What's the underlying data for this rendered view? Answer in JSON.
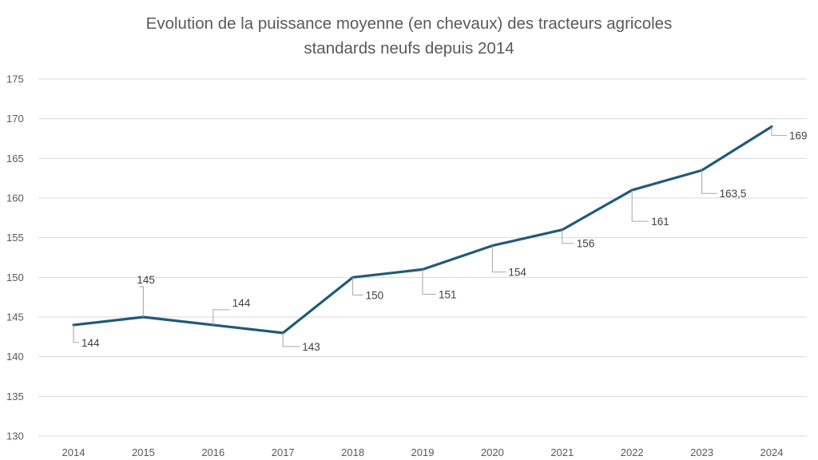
{
  "chart_data": {
    "type": "line",
    "title_lines": [
      "Evolution de la puissance moyenne (en chevaux) des tracteurs agricoles",
      "standards neufs depuis 2014"
    ],
    "x": [
      "2014",
      "2015",
      "2016",
      "2017",
      "2018",
      "2019",
      "2020",
      "2021",
      "2022",
      "2023",
      "2024"
    ],
    "series": [
      {
        "values": [
          144,
          145,
          144,
          143,
          150,
          151,
          154,
          156,
          161,
          163.5,
          169
        ],
        "labels": [
          "144",
          "145",
          "144",
          "143",
          "150",
          "151",
          "154",
          "156",
          "161",
          "163,5",
          "169"
        ],
        "color": "#1f5a7a"
      }
    ],
    "ylim": [
      130,
      175
    ],
    "yticks": [
      "130",
      "135",
      "140",
      "145",
      "150",
      "155",
      "160",
      "165",
      "170",
      "175"
    ],
    "xlabel": "",
    "ylabel": "",
    "grid": true,
    "legend": "none",
    "colors": {
      "line": "#1f5a7a",
      "grid": "#d9d9d9",
      "leader": "#a6a6a6",
      "text": "#595959"
    }
  }
}
